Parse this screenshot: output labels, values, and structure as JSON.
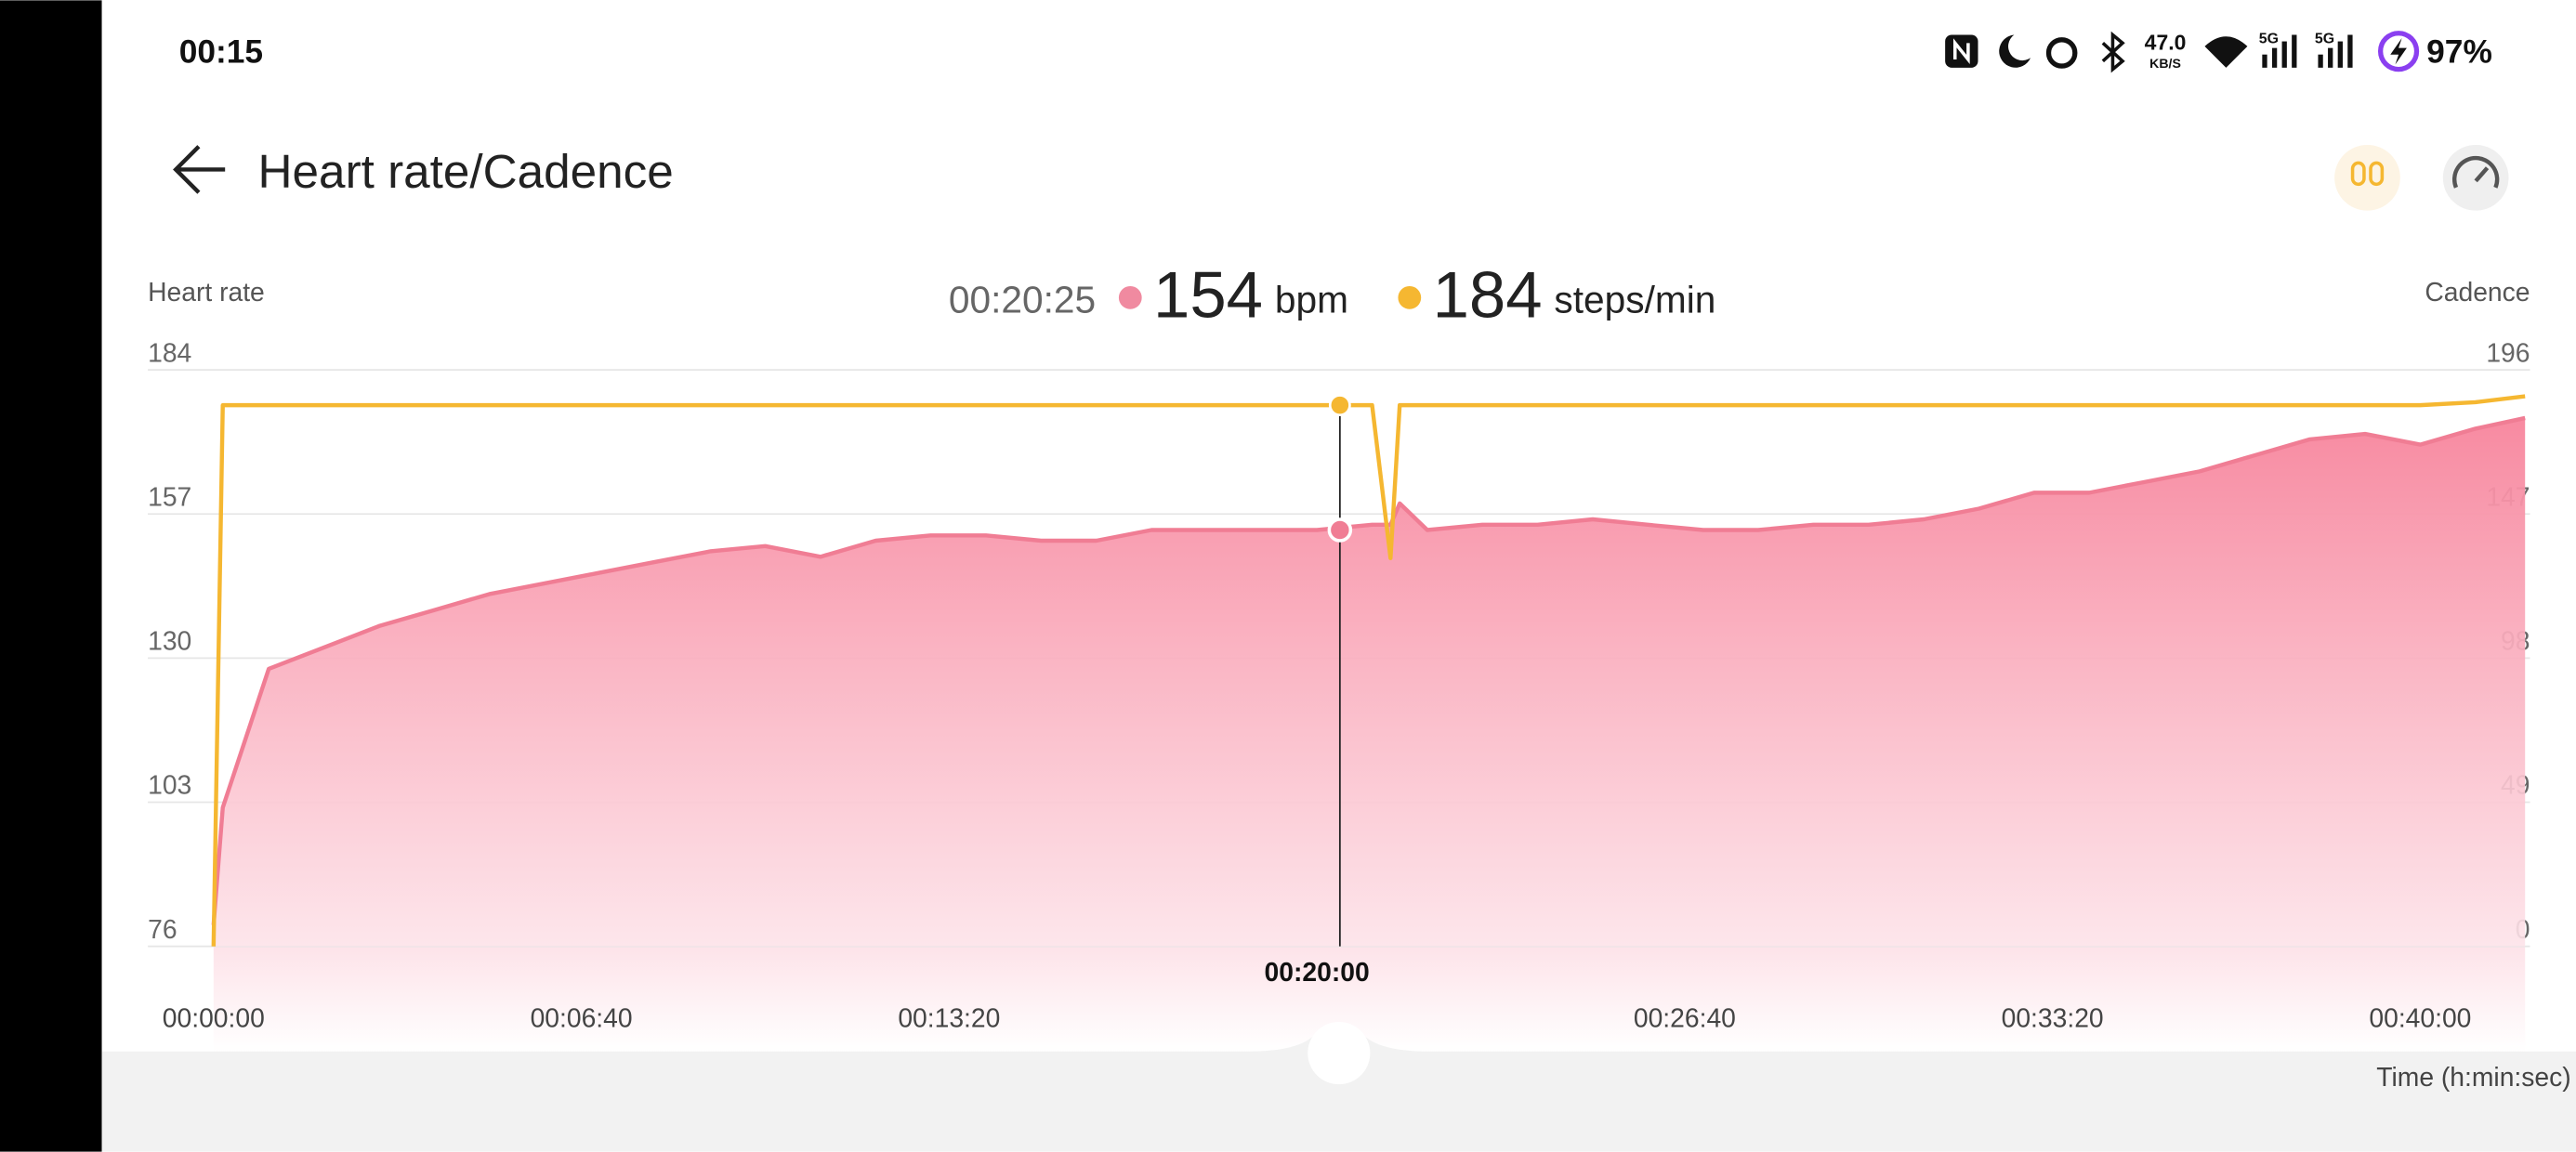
{
  "status_bar": {
    "time": "00:15",
    "network_speed": "47.0",
    "network_speed_unit": "KB/S",
    "signal_1": "5G",
    "signal_2": "5G",
    "battery": "97%"
  },
  "header": {
    "title": "Heart rate/Cadence"
  },
  "chart_data": {
    "type": "line",
    "ylabel": "Heart rate",
    "y2label": "Cadence",
    "xlabel": "Time (h:min:sec)",
    "units": {
      "heart_rate": "bpm",
      "cadence": "steps/min"
    },
    "cursor": {
      "x": {
        "value": 1225,
        "label": "00:20:25"
      },
      "heart_rate": 154,
      "cadence": 184
    },
    "x": [
      0,
      10,
      60,
      120,
      180,
      240,
      300,
      360,
      420,
      480,
      540,
      600,
      660,
      720,
      780,
      840,
      900,
      960,
      1020,
      1080,
      1140,
      1200,
      1260,
      1280,
      1290,
      1320,
      1380,
      1440,
      1500,
      1560,
      1620,
      1680,
      1740,
      1800,
      1860,
      1920,
      1980,
      2040,
      2100,
      2160,
      2220,
      2280,
      2340,
      2400,
      2460,
      2514
    ],
    "xlim": [
      0,
      2514
    ],
    "xticks": [
      {
        "value": 0,
        "label": "00:00:00"
      },
      {
        "value": 400,
        "label": "00:06:40"
      },
      {
        "value": 800,
        "label": "00:13:20"
      },
      {
        "value": 1200,
        "label": "00:20:00"
      },
      {
        "value": 1600,
        "label": "00:26:40"
      },
      {
        "value": 2000,
        "label": "00:33:20"
      },
      {
        "value": 2400,
        "label": "00:40:00"
      }
    ],
    "ylim": [
      76,
      184
    ],
    "yticks": [
      76,
      103,
      130,
      157,
      184
    ],
    "y2lim": [
      0,
      196
    ],
    "y2ticks": [
      0,
      49,
      98,
      147,
      196
    ],
    "grid": true,
    "series": [
      {
        "name": "Heart rate",
        "color": "#f07d94",
        "area": true,
        "values": [
          80,
          102,
          128,
          132,
          136,
          139,
          142,
          144,
          146,
          148,
          150,
          151,
          149,
          152,
          153,
          153,
          152,
          152,
          154,
          154,
          154,
          154,
          155,
          155,
          159,
          154,
          155,
          155,
          156,
          155,
          154,
          154,
          155,
          155,
          156,
          158,
          161,
          161,
          163,
          165,
          168,
          171,
          172,
          170,
          173,
          175
        ]
      },
      {
        "name": "Cadence",
        "color": "#f5b731",
        "axis": "y2",
        "values": [
          0,
          184,
          184,
          184,
          184,
          184,
          184,
          184,
          184,
          184,
          184,
          184,
          184,
          184,
          184,
          184,
          184,
          184,
          184,
          184,
          184,
          184,
          184,
          132,
          184,
          184,
          184,
          184,
          184,
          184,
          184,
          184,
          184,
          184,
          184,
          184,
          184,
          184,
          184,
          184,
          184,
          184,
          184,
          184,
          185,
          187
        ]
      }
    ]
  }
}
